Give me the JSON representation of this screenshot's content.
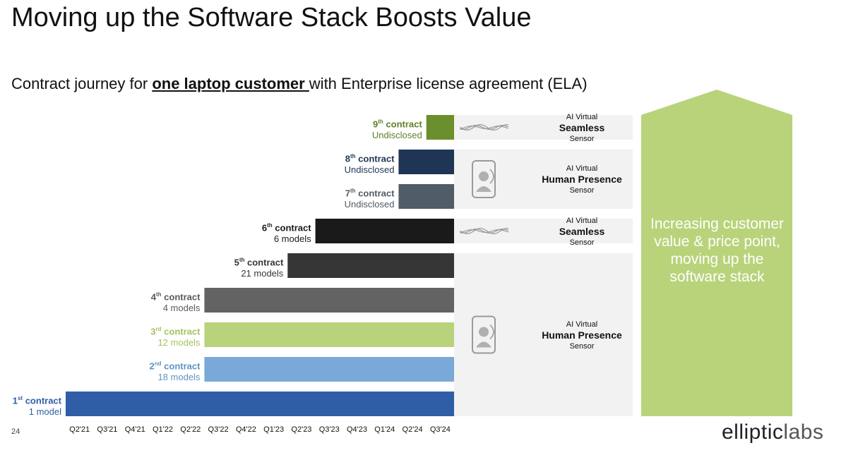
{
  "title": "Moving up the Software Stack Boosts Value",
  "subtitle": {
    "prefix": "Contract journey for ",
    "emphasis": "one laptop customer ",
    "suffix": "with Enterprise license agreement (ELA)"
  },
  "chart_data": {
    "type": "bar",
    "orientation": "horizontal",
    "x_ticks": [
      "Q2'21",
      "Q3'21",
      "Q4'21",
      "Q1'22",
      "Q2'22",
      "Q3'22",
      "Q4'22",
      "Q1'23",
      "Q2'23",
      "Q3'23",
      "Q4'23",
      "Q1'24",
      "Q2'24",
      "Q3'24"
    ],
    "contracts": [
      {
        "ord": "9",
        "sup": "th",
        "label": " contract",
        "detail": "Undisclosed",
        "start": "Q3'24",
        "end": "Q3'24",
        "color": "#6a8f2c",
        "text_color": "#5f7f26"
      },
      {
        "ord": "8",
        "sup": "th",
        "label": " contract",
        "detail": "Undisclosed",
        "start": "Q2'24",
        "end": "Q3'24",
        "color": "#1f3555",
        "text_color": "#1f3555"
      },
      {
        "ord": "7",
        "sup": "th",
        "label": " contract",
        "detail": "Undisclosed",
        "start": "Q2'24",
        "end": "Q3'24",
        "color": "#505c66",
        "text_color": "#505c66"
      },
      {
        "ord": "6",
        "sup": "th",
        "label": " contract",
        "detail": "6 models",
        "start": "Q3'23",
        "end": "Q3'24",
        "color": "#1a1a1a",
        "text_color": "#1a1a1a"
      },
      {
        "ord": "5",
        "sup": "th",
        "label": " contract",
        "detail": "21 models",
        "start": "Q2'23",
        "end": "Q3'24",
        "color": "#363636",
        "text_color": "#363636"
      },
      {
        "ord": "4",
        "sup": "th",
        "label": " contract",
        "detail": "4 models",
        "start": "Q3'22",
        "end": "Q3'24",
        "color": "#636363",
        "text_color": "#5a5a5a"
      },
      {
        "ord": "3",
        "sup": "rd",
        "label": " contract",
        "detail": "12 models",
        "start": "Q3'22",
        "end": "Q3'24",
        "color": "#b8d37a",
        "text_color": "#a5c25e"
      },
      {
        "ord": "2",
        "sup": "nd",
        "label": " contract",
        "detail": "18 models",
        "start": "Q3'22",
        "end": "Q3'24",
        "color": "#79a9d9",
        "text_color": "#5f93c8"
      },
      {
        "ord": "1",
        "sup": "st",
        "label": " contract",
        "detail": "1 model",
        "start": "Q2'21",
        "end": "Q3'24",
        "color": "#2f5ea6",
        "text_color": "#2f5ea6"
      }
    ]
  },
  "panels": [
    {
      "top": "AI Virtual",
      "product": "Seamless",
      "bottom": "Sensor",
      "icon": "waveform-icon"
    },
    {
      "top": "AI Virtual",
      "product": "Human Presence",
      "bottom": "Sensor",
      "icon": "person-phone-icon"
    },
    {
      "top": "AI Virtual",
      "product": "Seamless",
      "bottom": "Sensor",
      "icon": "waveform-icon"
    },
    {
      "top": "AI Virtual",
      "product": "Human Presence",
      "bottom": "Sensor",
      "icon": "person-phone-icon"
    }
  ],
  "arrow_text": "Increasing customer value & price point, moving up the software stack",
  "arrow_color": "#b8d37a",
  "page_number": "24",
  "logo": {
    "bold": "elliptic",
    "light": "labs"
  }
}
